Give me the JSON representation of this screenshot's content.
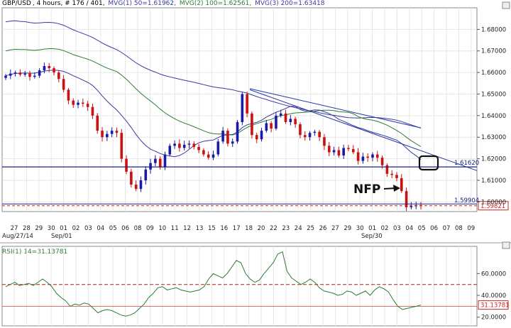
{
  "header": {
    "symbol": "GBP/USD",
    "info": ", 4 hours, # 176 / 401, ",
    "ma1": "MVG(1) 50=1.61962,",
    "ma2": "MVG(2) 100=1.62561,",
    "ma3": "MVG(3) 200=1.63418"
  },
  "colors": {
    "ma1": "#3a3aa0",
    "ma2": "#2e7d32",
    "ma3": "#3a3aa0",
    "up": "#1a1aa8",
    "down": "#cc1111",
    "rsi": "#2e7d32"
  },
  "chart_data": [
    {
      "type": "candlestick",
      "title": "",
      "x_ticks": [
        "27",
        "28",
        "29",
        "30",
        "01",
        "02",
        "03",
        "04",
        "05",
        "06",
        "08",
        "09",
        "10",
        "11",
        "12",
        "13",
        "15",
        "16",
        "17",
        "18",
        "20",
        "22",
        "23",
        "24",
        "25",
        "26",
        "27",
        "29",
        "30",
        "01",
        "02",
        "03",
        "04",
        "05",
        "06",
        "07",
        "08",
        "09"
      ],
      "x_secondary_labels": [
        "Aug/27/14",
        "Sep/01",
        "Sep/30"
      ],
      "y_ticks": [
        "1.68000",
        "1.67000",
        "1.66000",
        "1.65000",
        "1.64000",
        "1.63000",
        "1.62000",
        "1.61000",
        "1.60000"
      ],
      "ylim": [
        1.5955,
        1.69
      ],
      "levels": [
        {
          "label": "1.61620",
          "value": 1.6162
        },
        {
          "label": "1.59904",
          "value": 1.59904
        },
        {
          "label": "1.59821",
          "value": 1.59821
        }
      ],
      "closes": [
        1.6585,
        1.6595,
        1.66,
        1.659,
        1.6595,
        1.658,
        1.6585,
        1.661,
        1.663,
        1.662,
        1.66,
        1.657,
        1.652,
        1.647,
        1.645,
        1.646,
        1.6455,
        1.644,
        1.64,
        1.633,
        1.63,
        1.6315,
        1.633,
        1.632,
        1.62,
        1.614,
        1.608,
        1.606,
        1.61,
        1.615,
        1.618,
        1.62,
        1.616,
        1.622,
        1.626,
        1.627,
        1.625,
        1.6265,
        1.627,
        1.6255,
        1.624,
        1.622,
        1.6205,
        1.622,
        1.628,
        1.633,
        1.627,
        1.628,
        1.637,
        1.65,
        1.641,
        1.631,
        1.629,
        1.633,
        1.6365,
        1.634,
        1.64,
        1.641,
        1.637,
        1.6385,
        1.636,
        1.631,
        1.63,
        1.632,
        1.6325,
        1.63,
        1.626,
        1.623,
        1.624,
        1.6215,
        1.625,
        1.6245,
        1.623,
        1.619,
        1.621,
        1.6205,
        1.622,
        1.6205,
        1.617,
        1.613,
        1.6125,
        1.611,
        1.605,
        1.5975,
        1.598,
        1.5985,
        1.5982
      ],
      "annotations": [
        "NFP"
      ],
      "moving_averages": [
        {
          "name": "MVG(1) 50",
          "last": 1.61962
        },
        {
          "name": "MVG(2) 100",
          "last": 1.62561
        },
        {
          "name": "MVG(3) 200",
          "last": 1.63418
        }
      ]
    },
    {
      "type": "line",
      "title": "RSI(1) 14=31.13781",
      "y_ticks": [
        "60.0000",
        "40.0000",
        "20.0000"
      ],
      "ylim": [
        12,
        85
      ],
      "levels": [
        {
          "value": 50
        },
        {
          "value": 30
        }
      ],
      "current_label": "31.13781",
      "values": [
        48,
        50,
        52,
        49,
        50,
        51,
        49,
        52,
        55,
        52,
        48,
        42,
        38,
        35,
        30,
        32,
        31,
        33,
        32,
        28,
        24,
        26,
        27,
        26,
        24,
        22,
        21,
        22,
        24,
        28,
        32,
        38,
        42,
        47,
        48,
        45,
        46,
        47,
        45,
        44,
        43,
        44,
        45,
        48,
        55,
        60,
        58,
        56,
        60,
        66,
        72,
        70,
        60,
        55,
        52,
        54,
        60,
        65,
        70,
        78,
        80,
        62,
        56,
        53,
        50,
        52,
        55,
        52,
        47,
        44,
        43,
        42,
        40,
        41,
        44,
        43,
        40,
        42,
        44,
        40,
        45,
        48,
        46,
        43,
        36,
        30,
        27,
        28,
        29,
        30,
        31.14
      ]
    }
  ]
}
